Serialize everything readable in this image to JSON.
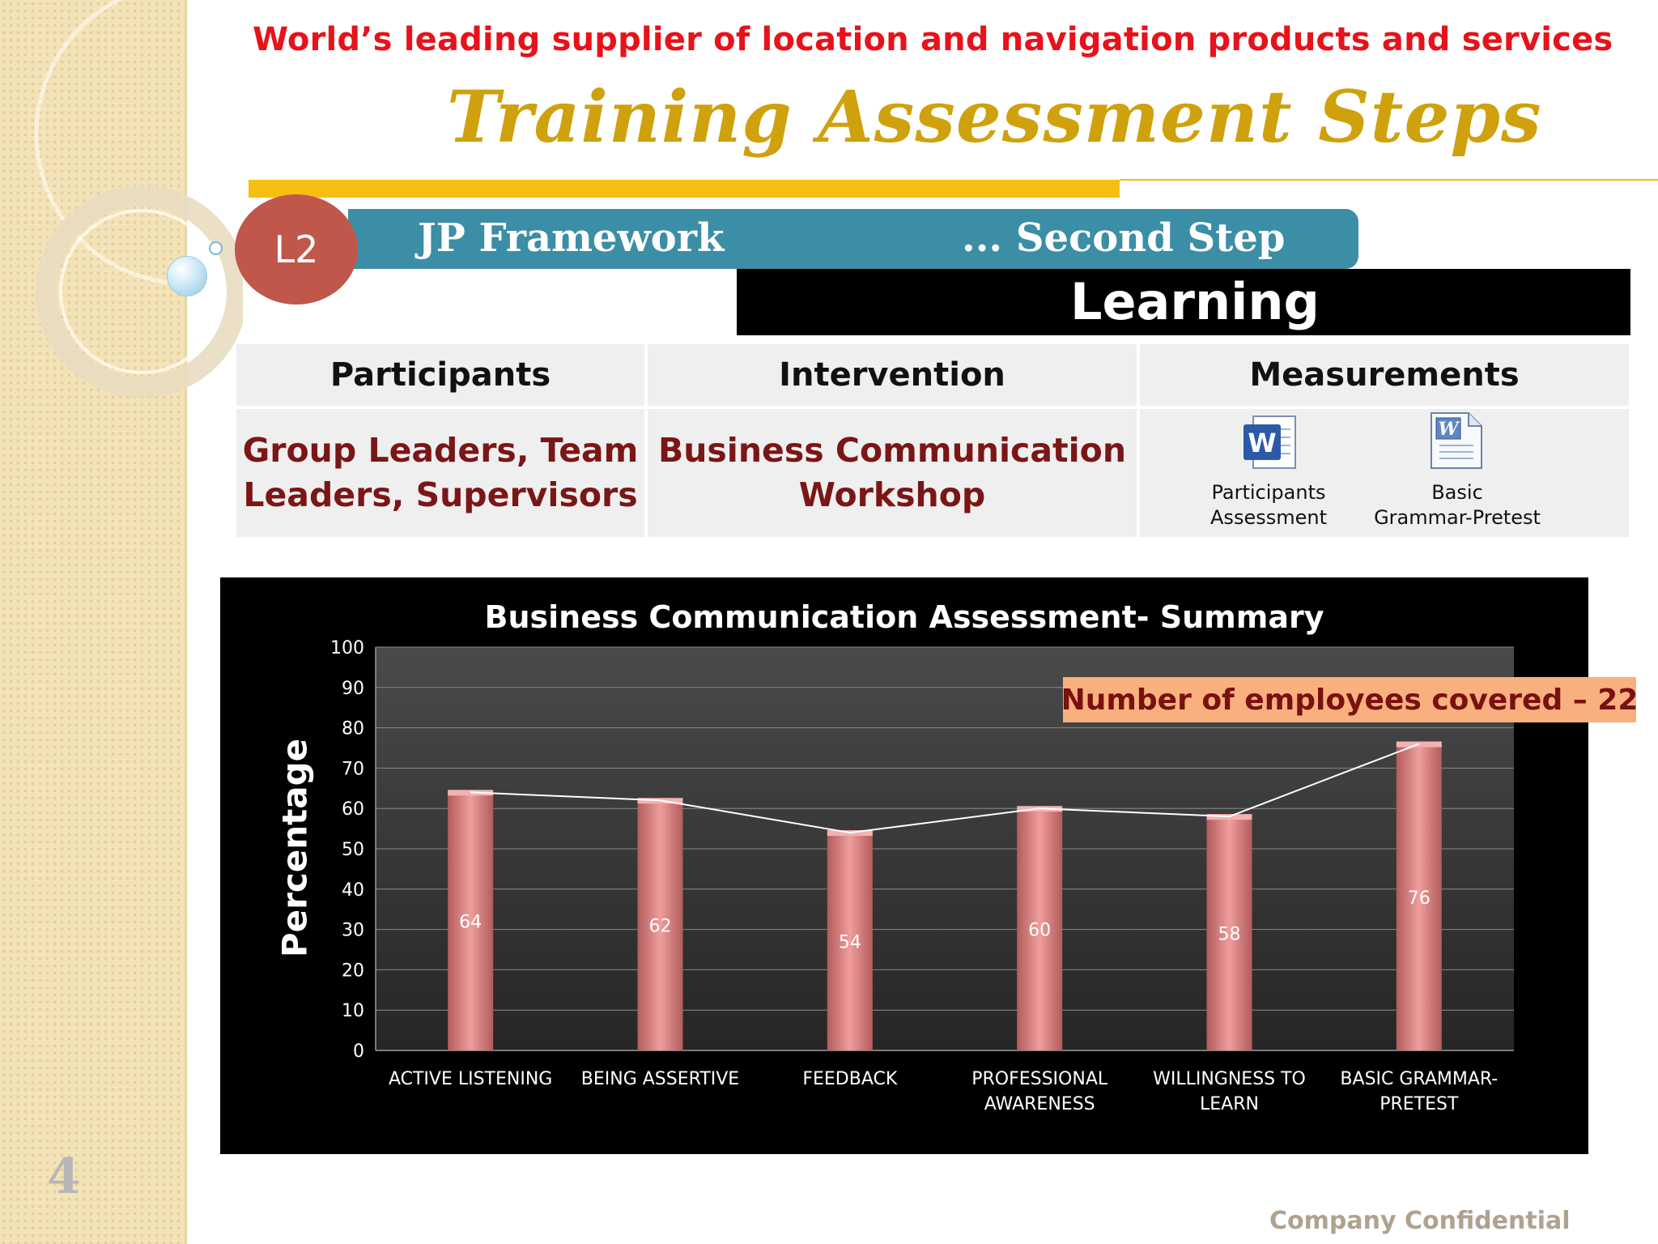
{
  "page_number": "4",
  "tagline": "World’s leading supplier of location and navigation products and services",
  "title": "Training Assessment Steps",
  "level_badge": "L2",
  "framework": {
    "left": "JP Framework",
    "right": "... Second Step"
  },
  "stage": "Learning",
  "table": {
    "headers": [
      "Participants",
      "Intervention",
      "Measurements"
    ],
    "participants": [
      "Group Leaders, Team",
      "Leaders, Supervisors"
    ],
    "intervention": [
      "Business Communication",
      "Workshop"
    ],
    "measurements": [
      {
        "icon": "word-document-icon",
        "lines": [
          "Participants",
          "Assessment"
        ]
      },
      {
        "icon": "word-document-icon",
        "lines": [
          "Basic",
          "Grammar-Pretest"
        ]
      }
    ]
  },
  "note": "Number of employees covered – 22",
  "footer": "Company Confidential",
  "colors": {
    "accent_gold": "#cfa10d",
    "tagline_red": "#e8121a",
    "teal": "#3b8ea5",
    "bar_pink": "#e08a8a"
  },
  "chart_data": {
    "type": "bar",
    "title": "Business Communication Assessment- Summary",
    "ylabel": "Percentage",
    "xlabel": "",
    "ylim": [
      0,
      100
    ],
    "yticks": [
      0,
      10,
      20,
      30,
      40,
      50,
      60,
      70,
      80,
      90,
      100
    ],
    "categories": [
      [
        "ACTIVE LISTENING"
      ],
      [
        "BEING ASSERTIVE"
      ],
      [
        "FEEDBACK"
      ],
      [
        "PROFESSIONAL",
        "AWARENESS"
      ],
      [
        "WILLINGNESS TO",
        "LEARN"
      ],
      [
        "BASIC GRAMMAR-",
        "PRETEST"
      ]
    ],
    "values": [
      64,
      62,
      54,
      60,
      58,
      76
    ],
    "overlay_line": true,
    "grid": true
  }
}
